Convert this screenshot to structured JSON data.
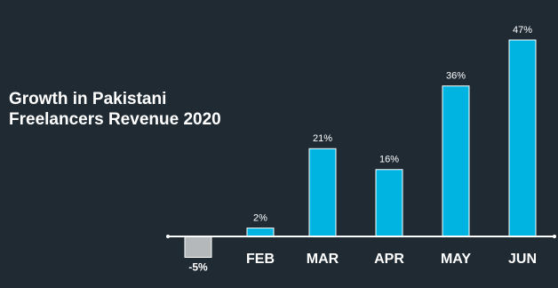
{
  "chart_data": {
    "type": "bar",
    "title": "Growth in Pakistani Freelancers Revenue 2020",
    "categories": [
      null,
      "FEB",
      "MAR",
      "APR",
      "MAY",
      "JUN"
    ],
    "values": [
      -5,
      2,
      21,
      16,
      36,
      47
    ],
    "value_labels": [
      "-5%",
      "2%",
      "21%",
      "16%",
      "36%",
      "47%"
    ],
    "colors": [
      "#b5b8ba",
      "#00b4e2",
      "#00b4e2",
      "#00b4e2",
      "#00b4e2",
      "#00b4e2"
    ]
  }
}
